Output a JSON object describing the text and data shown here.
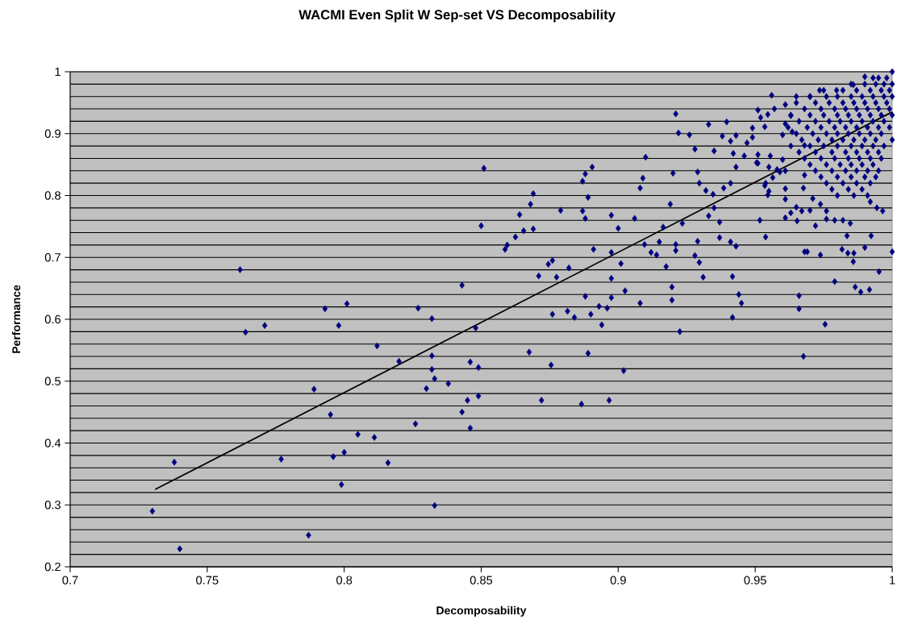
{
  "chart_data": {
    "type": "scatter",
    "title": "WACMI Even Split W Sep-set VS Decomposability",
    "xlabel": "Decomposability",
    "ylabel": "Performance",
    "xlim": [
      0.7,
      1
    ],
    "ylim": [
      0.2,
      1
    ],
    "xticks": [
      0.7,
      0.75,
      0.8,
      0.85,
      0.9,
      0.95,
      1
    ],
    "yticks": [
      0.2,
      {
        "value": 0.22,
        "label": null
      },
      {
        "value": 0.24,
        "label": null
      },
      {
        "value": 0.26,
        "label": null
      },
      {
        "value": 0.28,
        "label": null
      },
      0.3,
      {
        "value": 0.32,
        "label": null
      },
      {
        "value": 0.34,
        "label": null
      },
      {
        "value": 0.36,
        "label": null
      },
      {
        "value": 0.38,
        "label": null
      },
      0.4,
      {
        "value": 0.42,
        "label": null
      },
      {
        "value": 0.44,
        "label": null
      },
      {
        "value": 0.46,
        "label": null
      },
      {
        "value": 0.48,
        "label": null
      },
      0.5,
      {
        "value": 0.52,
        "label": null
      },
      {
        "value": 0.54,
        "label": null
      },
      {
        "value": 0.56,
        "label": null
      },
      {
        "value": 0.58,
        "label": null
      },
      0.6,
      {
        "value": 0.62,
        "label": null
      },
      {
        "value": 0.64,
        "label": null
      },
      {
        "value": 0.66,
        "label": null
      },
      {
        "value": 0.68,
        "label": null
      },
      0.7,
      {
        "value": 0.72,
        "label": null
      },
      {
        "value": 0.74,
        "label": null
      },
      {
        "value": 0.76,
        "label": null
      },
      {
        "value": 0.78,
        "label": null
      },
      0.8,
      {
        "value": 0.82,
        "label": null
      },
      {
        "value": 0.84,
        "label": null
      },
      {
        "value": 0.86,
        "label": null
      },
      {
        "value": 0.88,
        "label": null
      },
      0.9,
      {
        "value": 0.92,
        "label": null
      },
      {
        "value": 0.94,
        "label": null
      },
      {
        "value": 0.96,
        "label": null
      },
      {
        "value": 0.98,
        "label": null
      },
      1
    ],
    "grid": "y",
    "marker": "diamond",
    "series": [
      {
        "color": "#000080",
        "x": [
          0.73,
          0.738,
          0.74,
          0.762,
          0.764,
          0.771,
          0.793,
          0.798,
          0.789,
          0.795,
          0.777,
          0.796,
          0.787
        ],
        "values": [
          0.29,
          0.369,
          0.229,
          0.68,
          0.579,
          0.59,
          0.617,
          0.59,
          0.487,
          0.446,
          0.374,
          0.378,
          0.251
        ]
      },
      {
        "color": "#000080",
        "x": [
          0.851,
          0.8905,
          0.888,
          0.887,
          0.889,
          0.869,
          0.868,
          0.879,
          0.887,
          0.888,
          0.8975,
          0.864,
          0.85,
          0.8655,
          0.869,
          0.8625,
          0.8595,
          0.8587,
          0.891,
          0.8975,
          0.876,
          0.8745,
          0.882,
          0.871,
          0.8775,
          0.8975,
          0.843,
          0.888,
          0.8975,
          0.801,
          0.827,
          0.893,
          0.896,
          0.876,
          0.8815,
          0.884,
          0.89,
          0.894,
          0.832,
          0.848,
          0.812,
          0.8675,
          0.889,
          0.82,
          0.832,
          0.846,
          0.849,
          0.8755,
          0.832,
          0.833,
          0.838,
          0.83,
          0.849,
          0.845,
          0.872,
          0.8866,
          0.8967,
          0.843,
          0.826,
          0.846,
          0.805,
          0.811,
          0.8,
          0.816,
          0.799,
          0.833
        ],
        "values": [
          0.844,
          0.846,
          0.835,
          0.823,
          0.797,
          0.803,
          0.786,
          0.776,
          0.775,
          0.763,
          0.768,
          0.769,
          0.751,
          0.743,
          0.746,
          0.733,
          0.72,
          0.713,
          0.713,
          0.708,
          0.695,
          0.689,
          0.683,
          0.67,
          0.668,
          0.666,
          0.655,
          0.637,
          0.635,
          0.625,
          0.618,
          0.621,
          0.618,
          0.608,
          0.613,
          0.603,
          0.608,
          0.591,
          0.601,
          0.586,
          0.557,
          0.547,
          0.545,
          0.532,
          0.541,
          0.531,
          0.522,
          0.526,
          0.519,
          0.504,
          0.496,
          0.488,
          0.476,
          0.469,
          0.469,
          0.463,
          0.469,
          0.45,
          0.431,
          0.424,
          0.414,
          0.409,
          0.385,
          0.368,
          0.333,
          0.299
        ]
      },
      {
        "color": "#000080",
        "x": [
          0.921,
          0.922,
          0.926,
          0.933,
          0.9396,
          0.91,
          0.928,
          0.935,
          0.938,
          0.909,
          0.908,
          0.92,
          0.929,
          0.9296,
          0.932,
          0.9346,
          0.9385,
          0.941,
          0.919,
          0.906,
          0.9,
          0.9164,
          0.9234,
          0.933,
          0.937,
          0.935,
          0.9096,
          0.912,
          0.914,
          0.915,
          0.921,
          0.921,
          0.929,
          0.937,
          0.941,
          0.943,
          0.901,
          0.9175,
          0.928,
          0.9296,
          0.9196,
          0.931,
          0.9417,
          0.9025,
          0.908,
          0.9196,
          0.944,
          0.945,
          0.9417,
          0.9225,
          0.902
        ],
        "values": [
          0.932,
          0.901,
          0.898,
          0.915,
          0.919,
          0.862,
          0.875,
          0.872,
          0.896,
          0.828,
          0.812,
          0.836,
          0.838,
          0.82,
          0.808,
          0.802,
          0.812,
          0.82,
          0.786,
          0.763,
          0.747,
          0.749,
          0.755,
          0.767,
          0.757,
          0.78,
          0.721,
          0.708,
          0.704,
          0.725,
          0.721,
          0.711,
          0.726,
          0.732,
          0.725,
          0.718,
          0.69,
          0.685,
          0.703,
          0.692,
          0.652,
          0.668,
          0.669,
          0.646,
          0.626,
          0.631,
          0.64,
          0.626,
          0.603,
          0.58,
          0.517
        ]
      },
      {
        "color": "#000080",
        "x": [
          0.9517,
          0.9538,
          0.966,
          0.966,
          0.9676,
          0.9755,
          0.979,
          0.968,
          0.969,
          0.9738,
          0.9865,
          0.9885,
          0.9917,
          0.9952,
          1.0,
          0.9835,
          0.9923,
          0.9817,
          0.9838,
          0.986,
          0.9858,
          0.99,
          0.972,
          0.9653,
          0.976,
          0.979,
          0.982,
          0.9847,
          0.992,
          0.9944,
          0.9965,
          0.961,
          0.963,
          0.967,
          0.97,
          0.9738,
          0.976,
          0.965,
          0.961,
          0.9564,
          0.961,
          0.9676,
          0.971,
          0.968,
          0.9546,
          0.955,
          0.9538,
          0.9505,
          0.951,
          0.9555,
          0.96,
          0.956,
          0.951,
          0.9546,
          0.952,
          0.957,
          0.961,
          0.965,
          0.9535,
          0.949,
          0.949,
          0.947,
          0.943,
          0.941,
          0.942,
          0.946,
          0.943,
          0.951,
          0.955,
          0.958,
          0.961,
          0.9535,
          0.959,
          0.96,
          0.961,
          0.963,
          0.9635,
          0.968,
          0.97,
          0.9735,
          0.9797,
          0.9858,
          0.99,
          1.0
        ],
        "values": [
          0.76,
          0.733,
          0.638,
          0.617,
          0.54,
          0.592,
          0.661,
          0.709,
          0.709,
          0.704,
          0.652,
          0.644,
          0.648,
          0.677,
          0.709,
          0.735,
          0.735,
          0.713,
          0.707,
          0.707,
          0.693,
          0.716,
          0.751,
          0.759,
          0.762,
          0.76,
          0.76,
          0.755,
          0.79,
          0.78,
          0.775,
          0.764,
          0.772,
          0.775,
          0.776,
          0.786,
          0.775,
          0.781,
          0.794,
          0.829,
          0.811,
          0.812,
          0.795,
          0.833,
          0.801,
          0.807,
          0.82,
          0.853,
          0.866,
          0.864,
          0.858,
          0.962,
          0.938,
          0.931,
          0.926,
          0.94,
          0.947,
          0.96,
          0.911,
          0.909,
          0.894,
          0.885,
          0.897,
          0.888,
          0.868,
          0.864,
          0.846,
          0.852,
          0.846,
          0.842,
          0.84,
          0.816,
          0.838,
          0.898,
          0.916,
          0.929,
          0.903,
          0.881,
          0.96,
          0.97,
          0.97,
          0.979,
          0.992,
          1.0
        ]
      },
      {
        "color": "#000080",
        "x": [
          0.995,
          0.998,
          0.993,
          0.985,
          0.99,
          0.994,
          0.997,
          1.0,
          0.975,
          0.982,
          0.987,
          0.992,
          0.996,
          0.999,
          0.97,
          0.976,
          0.98,
          0.985,
          0.989,
          0.993,
          0.997,
          1.0,
          0.965,
          0.972,
          0.977,
          0.982,
          0.986,
          0.99,
          0.994,
          0.998
        ],
        "values": [
          0.99,
          0.99,
          0.99,
          0.98,
          0.98,
          0.98,
          0.98,
          0.98,
          0.97,
          0.97,
          0.97,
          0.97,
          0.97,
          0.97,
          0.96,
          0.96,
          0.96,
          0.96,
          0.96,
          0.96,
          0.96,
          0.96,
          0.95,
          0.95,
          0.95,
          0.95,
          0.95,
          0.95,
          0.95,
          0.95
        ]
      },
      {
        "color": "#000080",
        "x": [
          0.968,
          0.974,
          0.979,
          0.983,
          0.987,
          0.991,
          0.995,
          0.999,
          0.963,
          0.97,
          0.975,
          0.98,
          0.984,
          0.988,
          0.992,
          0.996,
          1.0,
          0.966,
          0.972,
          0.977,
          0.981,
          0.985,
          0.989,
          0.993,
          0.997
        ],
        "values": [
          0.94,
          0.94,
          0.94,
          0.94,
          0.94,
          0.94,
          0.94,
          0.94,
          0.93,
          0.93,
          0.93,
          0.93,
          0.93,
          0.93,
          0.93,
          0.93,
          0.93,
          0.92,
          0.92,
          0.92,
          0.92,
          0.92,
          0.92,
          0.92,
          0.92
        ]
      },
      {
        "color": "#000080",
        "x": [
          0.962,
          0.969,
          0.974,
          0.979,
          0.983,
          0.987,
          0.991,
          0.995,
          0.999,
          0.965,
          0.971,
          0.976,
          0.98,
          0.984,
          0.988,
          0.992,
          0.996,
          0.967,
          0.973,
          0.978,
          0.982,
          0.986,
          0.99,
          0.994,
          1.0
        ],
        "values": [
          0.91,
          0.91,
          0.91,
          0.91,
          0.91,
          0.91,
          0.91,
          0.91,
          0.91,
          0.9,
          0.9,
          0.9,
          0.9,
          0.9,
          0.9,
          0.9,
          0.9,
          0.89,
          0.89,
          0.89,
          0.89,
          0.89,
          0.89,
          0.89,
          0.89
        ]
      },
      {
        "color": "#000080",
        "x": [
          0.963,
          0.97,
          0.975,
          0.98,
          0.985,
          0.989,
          0.993,
          0.997,
          0.966,
          0.972,
          0.978,
          0.983,
          0.987,
          0.991,
          0.995,
          0.968,
          0.974,
          0.979,
          0.984,
          0.988,
          0.992,
          0.996
        ],
        "values": [
          0.88,
          0.88,
          0.88,
          0.88,
          0.88,
          0.88,
          0.88,
          0.88,
          0.87,
          0.87,
          0.87,
          0.87,
          0.87,
          0.87,
          0.87,
          0.86,
          0.86,
          0.86,
          0.86,
          0.86,
          0.86,
          0.86
        ]
      },
      {
        "color": "#000080",
        "x": [
          0.97,
          0.976,
          0.981,
          0.985,
          0.989,
          0.993,
          0.972,
          0.978,
          0.983,
          0.987,
          0.991,
          0.995,
          0.974,
          0.98,
          0.985,
          0.99,
          0.994,
          0.976,
          0.982,
          0.987,
          0.992,
          0.978,
          0.984,
          0.989,
          0.98,
          0.986,
          0.991
        ],
        "values": [
          0.85,
          0.85,
          0.85,
          0.85,
          0.85,
          0.85,
          0.84,
          0.84,
          0.84,
          0.84,
          0.84,
          0.84,
          0.83,
          0.83,
          0.83,
          0.83,
          0.83,
          0.82,
          0.82,
          0.82,
          0.82,
          0.81,
          0.81,
          0.81,
          0.8,
          0.8,
          0.8
        ]
      },
      {
        "type": "line",
        "marker": "none",
        "color": "#000000",
        "x": [
          0.731,
          1.0
        ],
        "values": [
          0.325,
          0.935
        ]
      }
    ]
  }
}
